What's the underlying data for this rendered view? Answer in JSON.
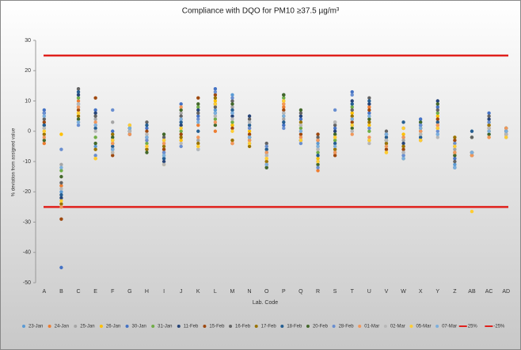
{
  "chart_data": {
    "type": "dot",
    "title": "Compliance with DQO for PM10 ≥37.5 µg/m³",
    "x_label": "Lab. Code",
    "y_label": "% deviation from assigned value",
    "categories": [
      "A",
      "B",
      "C",
      "E",
      "F",
      "G",
      "H",
      "I",
      "J",
      "K",
      "L",
      "M",
      "N",
      "O",
      "P",
      "Q",
      "R",
      "S",
      "T",
      "U",
      "V",
      "W",
      "X",
      "Y",
      "Z",
      "AB",
      "AC",
      "AD"
    ],
    "ylim": [
      -50,
      30
    ],
    "yticks": [
      -50,
      -40,
      -30,
      -20,
      -10,
      0,
      10,
      20,
      30
    ],
    "series": [
      {
        "name": "23-Jan",
        "color": "#5b9bd5",
        "values": [
          2,
          -20,
          8,
          -5,
          -2,
          0,
          -6,
          -9,
          1,
          -6,
          7,
          12,
          -4,
          -8,
          6,
          -3,
          -4,
          -7,
          2,
          -3,
          -4,
          -8,
          3,
          -1,
          -11,
          -7,
          -1,
          0
        ]
      },
      {
        "name": "24-Jan",
        "color": "#ed7d31",
        "values": [
          -4,
          -18,
          10,
          2,
          -5,
          1,
          -3,
          -7,
          4,
          2,
          0,
          -4,
          1,
          -10,
          8,
          0,
          -13,
          -2,
          4,
          8,
          -2,
          -5,
          0,
          3,
          -8,
          -8,
          2,
          -1
        ]
      },
      {
        "name": "25-Jan",
        "color": "#a5a5a5",
        "values": [
          5,
          -11,
          3,
          4,
          3,
          0,
          -1,
          -4,
          6,
          -3,
          5,
          8,
          -2,
          -6,
          4,
          -2,
          -6,
          3,
          0,
          5,
          -1,
          -3,
          -2,
          2,
          -6,
          -7,
          0,
          -2
        ]
      },
      {
        "name": "26-Jan",
        "color": "#ffc000",
        "values": [
          0,
          -1,
          6,
          -9,
          -7,
          2,
          -5,
          -11,
          -3,
          -5,
          10,
          2,
          0,
          -9,
          9,
          2,
          -9,
          -5,
          6,
          2,
          -7,
          -1,
          1,
          5,
          -4,
          -7,
          -2,
          1
        ]
      },
      {
        "name": "30-Jan",
        "color": "#4472c4",
        "values": [
          7,
          -45,
          9,
          7,
          0,
          -1,
          1,
          -3,
          9,
          5,
          14,
          6,
          3,
          -12,
          2,
          4,
          -10,
          1,
          13,
          6,
          -3,
          -7,
          4,
          8,
          -9,
          -8,
          6,
          0
        ]
      },
      {
        "name": "31-Jan",
        "color": "#70ad47",
        "values": [
          1,
          -13,
          11,
          -2,
          -4,
          1,
          -4,
          -8,
          0,
          8,
          4,
          3,
          -3,
          -5,
          11,
          1,
          -7,
          -3,
          8,
          0,
          -5,
          -2,
          -1,
          6,
          -7,
          -2,
          3,
          1
        ]
      },
      {
        "name": "11-Feb",
        "color": "#264478",
        "values": [
          6,
          -22,
          12,
          6,
          -6,
          0,
          -2,
          -10,
          2,
          7,
          9,
          5,
          5,
          -7,
          12,
          5,
          -3,
          0,
          10,
          9,
          -1,
          -4,
          2,
          10,
          -5,
          -7,
          4,
          0
        ]
      },
      {
        "name": "15-Feb",
        "color": "#9e480e",
        "values": [
          3,
          -29,
          7,
          11,
          -8,
          -1,
          0,
          -6,
          -1,
          11,
          12,
          1,
          -1,
          -11,
          7,
          -1,
          -1,
          -8,
          3,
          7,
          -6,
          -6,
          -3,
          4,
          -3,
          -7,
          1,
          -1
        ]
      },
      {
        "name": "16-Feb",
        "color": "#636363",
        "values": [
          4,
          -17,
          14,
          5,
          -3,
          1,
          3,
          -2,
          5,
          6,
          8,
          10,
          4,
          -4,
          10,
          6,
          -2,
          2,
          7,
          11,
          0,
          1,
          0,
          7,
          -10,
          -2,
          5,
          0
        ]
      },
      {
        "name": "17-Feb",
        "color": "#997300",
        "values": [
          -1,
          -24,
          5,
          -6,
          -1,
          0,
          -6,
          -5,
          -2,
          -4,
          11,
          -3,
          -5,
          -10,
          5,
          3,
          -5,
          -6,
          5,
          3,
          -4,
          -5,
          1,
          1,
          -2,
          -8,
          2,
          -1
        ]
      },
      {
        "name": "18-Feb",
        "color": "#255e91",
        "values": [
          2,
          -21,
          13,
          1,
          -5,
          0,
          2,
          -9,
          3,
          0,
          6,
          7,
          2,
          -6,
          3,
          -3,
          -8,
          -4,
          9,
          10,
          -2,
          3,
          -2,
          3,
          -12,
          0,
          0,
          1
        ]
      },
      {
        "name": "20-Feb",
        "color": "#43682b",
        "values": [
          -3,
          -15,
          4,
          -4,
          -2,
          1,
          -7,
          -1,
          7,
          9,
          2,
          9,
          -2,
          -12,
          12,
          7,
          -11,
          -1,
          1,
          4,
          -3,
          -9,
          3,
          9,
          -8,
          -7,
          -1,
          0
        ]
      },
      {
        "name": "28-Feb",
        "color": "#698ed0",
        "values": [
          6,
          -6,
          2,
          -8,
          7,
          2,
          -3,
          -7,
          -5,
          4,
          13,
          11,
          1,
          -5,
          1,
          -4,
          -12,
          7,
          12,
          1,
          -1,
          -8,
          2,
          0,
          -4,
          -7,
          3,
          -2
        ]
      },
      {
        "name": "01-Mar",
        "color": "#f1975a",
        "values": [
          -2,
          -25,
          8,
          3,
          -4,
          -1,
          -5,
          -4,
          8,
          -2,
          3,
          -4,
          -3,
          -7,
          9,
          -2,
          -3,
          -7,
          -1,
          -2,
          -5,
          -2,
          0,
          2,
          -7,
          -8,
          -2,
          1
        ]
      },
      {
        "name": "02-Mar",
        "color": "#b7b7b7",
        "values": [
          1,
          -19,
          9,
          0,
          -7,
          0,
          -1,
          -11,
          -4,
          -6,
          5,
          4,
          3,
          -8,
          6,
          2,
          -6,
          3,
          0,
          -4,
          -3,
          -7,
          -1,
          -2,
          -5,
          -7,
          1,
          -1
        ]
      },
      {
        "name": "05-Mar",
        "color": "#ffcd33",
        "values": [
          0,
          -23,
          6,
          -9,
          -3,
          2,
          -5,
          -3,
          1,
          -5,
          9,
          0,
          -4,
          -9,
          10,
          -3,
          -10,
          -2,
          2,
          -3,
          -7,
          1,
          -3,
          1,
          -5,
          -26.5,
          0,
          -2
        ]
      },
      {
        "name": "07-Mar",
        "color": "#7cafdd",
        "values": [
          5,
          -12,
          3,
          2,
          -6,
          1,
          -2,
          -8,
          4,
          3,
          6,
          6,
          -2,
          -11,
          5,
          0,
          -5,
          -5,
          4,
          5,
          -1,
          -9,
          1,
          -1,
          -12,
          -7,
          0,
          0
        ]
      }
    ],
    "ref_lines": [
      {
        "name": "25%",
        "value": 25,
        "color": "#e0201c"
      },
      {
        "name": "-25%",
        "value": -25,
        "color": "#e0201c"
      }
    ]
  }
}
